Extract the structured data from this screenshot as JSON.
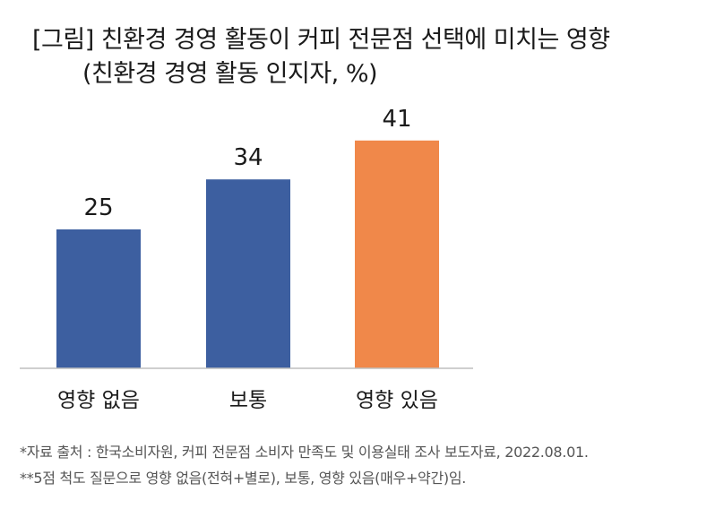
{
  "title": {
    "line1": "[그림] 친환경 경영 활동이 커피 전문점 선택에 미치는 영향",
    "line2": "(친환경 경영 활동 인지자, %)"
  },
  "chart_data": {
    "type": "bar",
    "categories": [
      "영향 없음",
      "보통",
      "영향 있음"
    ],
    "values": [
      25,
      34,
      41
    ],
    "colors": [
      "#3d5fa0",
      "#3d5fa0",
      "#f0884a"
    ],
    "ylim": [
      0,
      50
    ],
    "grid": false,
    "legend": "none"
  },
  "notes": {
    "source": "*자료 출처 : 한국소비자원, 커피 전문점 소비자 만족도 및 이용실태 조사 보도자료, 2022.08.01.",
    "scale": "**5점 척도 질문으로 영향 없음(전혀+별로), 보통, 영향 있음(매우+약간)임."
  }
}
